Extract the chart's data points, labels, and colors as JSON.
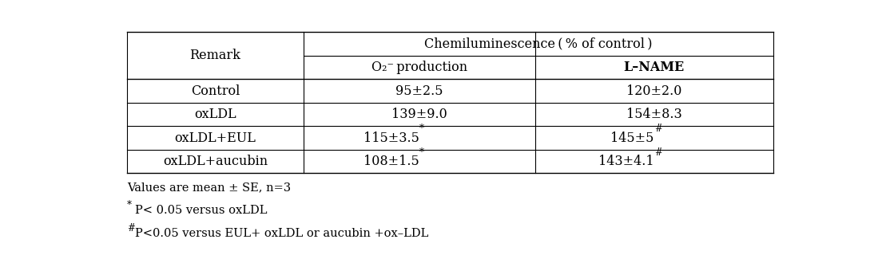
{
  "col_header_top": "Chemiluminescence ( % of control )",
  "col_header_sub1": "O₂⁻ production",
  "col_header_sub2": "L–NAME",
  "row_header": "Remark",
  "rows": [
    {
      "label": "Control",
      "val1": "95±2.5",
      "val1_sup": "",
      "val2": "120±2.0",
      "val2_sup": ""
    },
    {
      "label": "oxLDL",
      "val1": "139±9.0",
      "val1_sup": "",
      "val2": "154±8.3",
      "val2_sup": ""
    },
    {
      "label": "oxLDL+EUL",
      "val1": "115±3.5",
      "val1_sup": "*",
      "val2": "145±5",
      "val2_sup": "#"
    },
    {
      "label": "oxLDL+aucubin",
      "val1": "108±1.5",
      "val1_sup": "*",
      "val2": "143±4.1",
      "val2_sup": "#"
    }
  ],
  "footnote1": "Values are mean ± SE, n=3",
  "footnote2_sup": "*",
  "footnote2_text": "P< 0.05 versus oxLDL",
  "footnote3_sup": "#",
  "footnote3_text": "P<0.05 versus EUL+ oxLDL or aucubin +ox–LDL",
  "bg_color": "#ffffff",
  "text_color": "#000000",
  "line_color": "#000000",
  "font_size": 11.5,
  "footnote_font_size": 10.5
}
